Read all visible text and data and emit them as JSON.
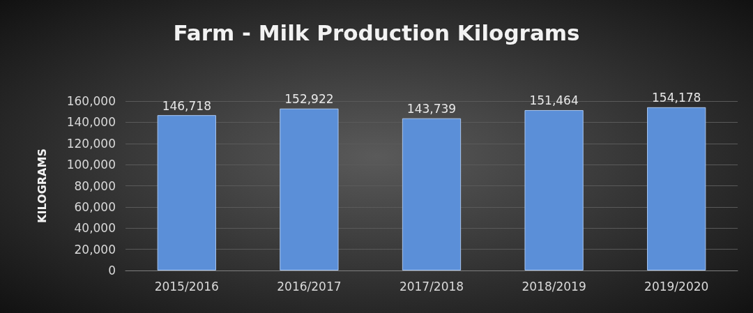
{
  "chart_data": {
    "type": "bar",
    "title": "Farm - Milk Production Kilograms",
    "ylabel": "KILOGRAMS",
    "categories": [
      "2015/2016",
      "2016/2017",
      "2017/2018",
      "2018/2019",
      "2019/2020"
    ],
    "values": [
      146718,
      152922,
      143739,
      151464,
      154178
    ],
    "value_labels": [
      "146,718",
      "152,922",
      "143,739",
      "151,464",
      "154,178"
    ],
    "color": "#5b8fd8",
    "ylim": [
      0,
      160000
    ],
    "yticks": [
      0,
      {
        "value": 20000,
        "label": "20,000"
      },
      {
        "value": 40000,
        "label": "40,000"
      },
      {
        "value": 60000,
        "label": "60,000"
      },
      {
        "value": 80000,
        "label": "80,000"
      },
      {
        "value": 100000,
        "label": "100,000"
      },
      {
        "value": 120000,
        "label": "120,000"
      },
      {
        "value": 140000,
        "label": "140,000"
      },
      {
        "value": 160000,
        "label": "160,000"
      }
    ],
    "grid": "y"
  }
}
